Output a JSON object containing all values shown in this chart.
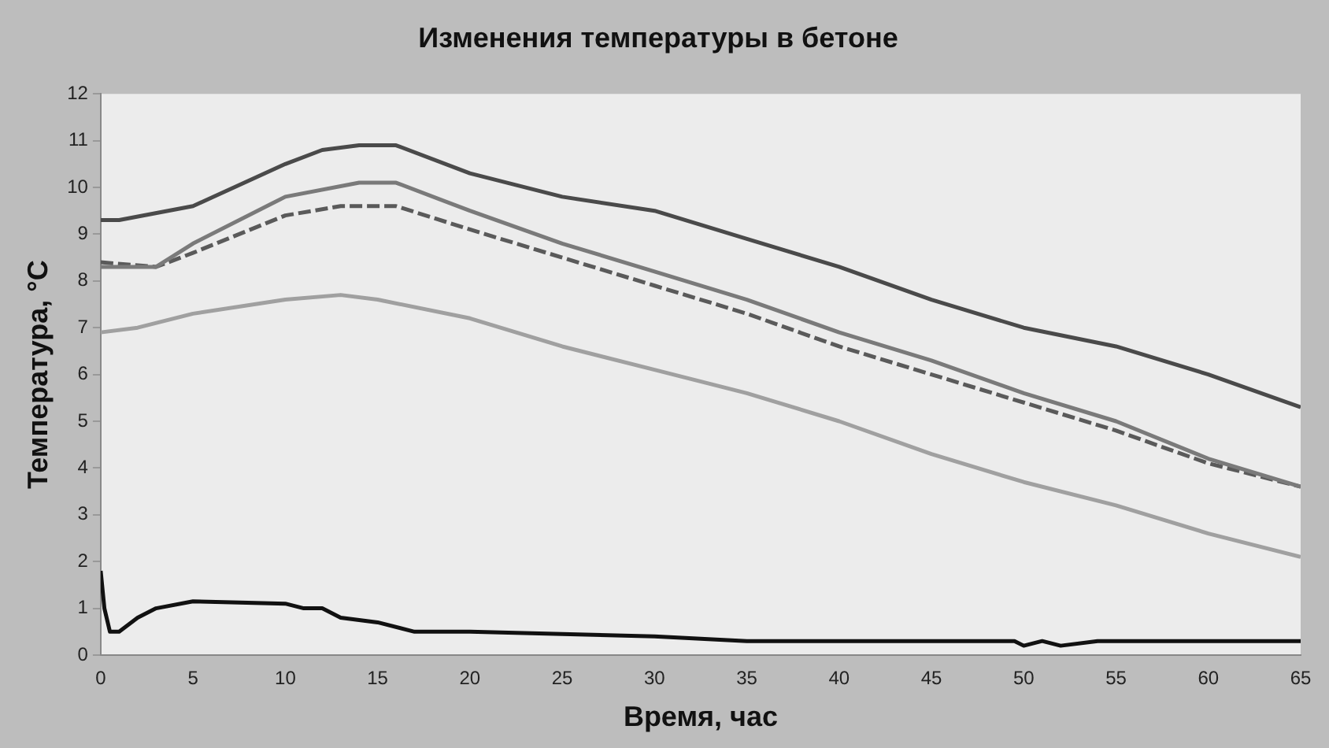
{
  "chart_data": {
    "type": "line",
    "title": "Изменения температуры в бетоне",
    "xlabel": "Время, час",
    "ylabel": "Температура, °C",
    "xlim": [
      0,
      65
    ],
    "xticks": [
      0,
      5,
      10,
      15,
      20,
      25,
      30,
      35,
      40,
      45,
      50,
      55,
      60,
      65
    ],
    "ylim": [
      0,
      12
    ],
    "yticks": [
      0,
      1,
      2,
      3,
      4,
      5,
      6,
      7,
      8,
      9,
      10,
      11,
      12
    ],
    "grid": false,
    "legend": false,
    "marker": "none",
    "series": [
      {
        "color": "#4a4a4a",
        "x": [
          0,
          1,
          5,
          10,
          12,
          14,
          16,
          20,
          25,
          30,
          35,
          40,
          45,
          50,
          55,
          60,
          65
        ],
        "values": [
          9.3,
          9.3,
          9.6,
          10.5,
          10.8,
          10.9,
          10.9,
          10.3,
          9.8,
          9.5,
          8.9,
          8.3,
          7.6,
          7.0,
          6.6,
          6.0,
          5.3
        ]
      },
      {
        "color": "#7a7a7a",
        "x": [
          0,
          3,
          5,
          10,
          14,
          16,
          20,
          25,
          30,
          35,
          40,
          45,
          50,
          55,
          60,
          65
        ],
        "values": [
          8.3,
          8.3,
          8.8,
          9.8,
          10.1,
          10.1,
          9.5,
          8.8,
          8.2,
          7.6,
          6.9,
          6.3,
          5.6,
          5.0,
          4.2,
          3.6
        ]
      },
      {
        "color": "#5a5a5a",
        "line_style": "dashed",
        "x": [
          0,
          3,
          5,
          10,
          13,
          16,
          20,
          25,
          30,
          35,
          40,
          45,
          50,
          55,
          60,
          65
        ],
        "values": [
          8.4,
          8.3,
          8.6,
          9.4,
          9.6,
          9.6,
          9.1,
          8.5,
          7.9,
          7.3,
          6.6,
          6.0,
          5.4,
          4.8,
          4.1,
          3.6
        ]
      },
      {
        "color": "#a0a0a0",
        "x": [
          0,
          2,
          5,
          10,
          13,
          15,
          20,
          25,
          30,
          35,
          40,
          45,
          50,
          55,
          60,
          65
        ],
        "values": [
          6.9,
          7.0,
          7.3,
          7.6,
          7.7,
          7.6,
          7.2,
          6.6,
          6.1,
          5.6,
          5.0,
          4.3,
          3.7,
          3.2,
          2.6,
          2.1
        ]
      },
      {
        "color": "#111111",
        "x": [
          0,
          0.2,
          0.5,
          1,
          2,
          3,
          5,
          10,
          11,
          12,
          13,
          15,
          17,
          20,
          25,
          30,
          35,
          40,
          45,
          49.5,
          50,
          51,
          52,
          54,
          60,
          65
        ],
        "values": [
          1.8,
          1.0,
          0.5,
          0.5,
          0.8,
          1.0,
          1.15,
          1.1,
          1.0,
          1.0,
          0.8,
          0.7,
          0.5,
          0.5,
          0.45,
          0.4,
          0.3,
          0.3,
          0.3,
          0.3,
          0.2,
          0.3,
          0.2,
          0.3,
          0.3,
          0.3
        ]
      }
    ]
  }
}
